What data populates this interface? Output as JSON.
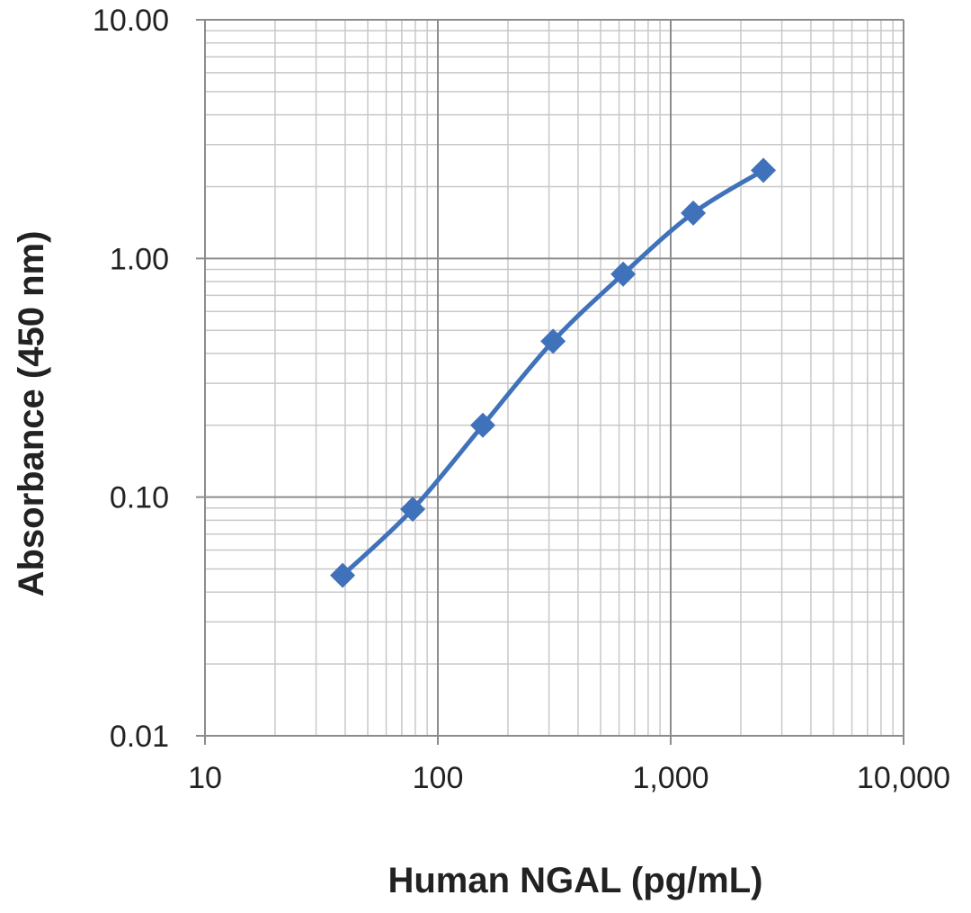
{
  "chart_data": {
    "type": "line",
    "log_x": true,
    "log_y": true,
    "grid": true,
    "minor_grid": true,
    "smooth": true,
    "marker": "diamond",
    "xlabel": "Human NGAL (pg/mL)",
    "ylabel": "Absorbance  (450 nm)",
    "xlim": [
      10,
      10000
    ],
    "xticks": [
      10,
      100,
      {
        "value": 1000,
        "label": "1,000"
      },
      {
        "value": 10000,
        "label": "10,000"
      }
    ],
    "ylim": [
      0.01,
      10
    ],
    "yticks": [
      {
        "value": 0.01,
        "label": "0.01"
      },
      {
        "value": 0.1,
        "label": "0.10"
      },
      {
        "value": 1,
        "label": "1.00"
      },
      {
        "value": 10,
        "label": "10.00"
      }
    ],
    "series": [
      {
        "color": "#3f72ba",
        "x": [
          39,
          78,
          156,
          312.5,
          625,
          1250,
          2500
        ],
        "values": [
          0.047,
          0.089,
          0.2,
          0.45,
          0.86,
          1.55,
          2.34
        ]
      }
    ]
  }
}
